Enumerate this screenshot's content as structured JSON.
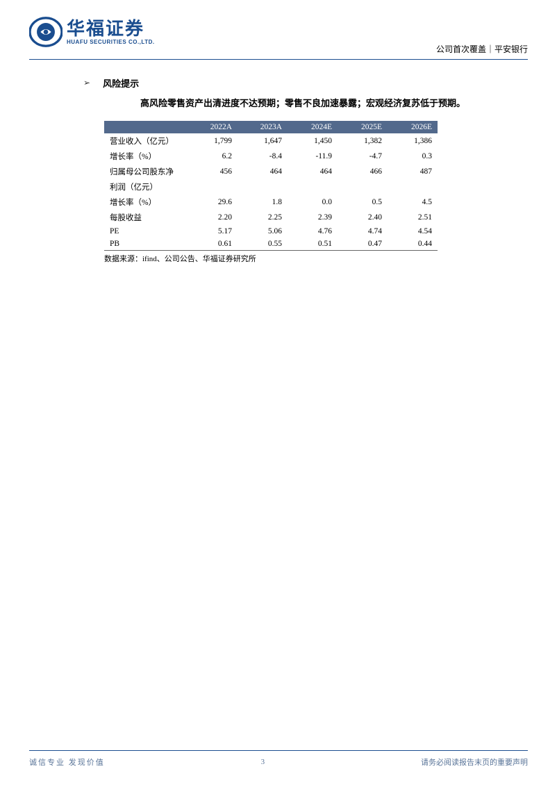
{
  "header": {
    "logo_chinese": "华福证券",
    "logo_english": "HUAFU SECURITIES CO.,LTD.",
    "right_text": "公司首次覆盖｜平安银行"
  },
  "section": {
    "title": "风险提示",
    "body": "高风险零售资产出清进度不达预期；零售不良加速暴露；宏观经济复苏低于预期。"
  },
  "table": {
    "header_bg": "#52698c",
    "header_fg": "#ffffff",
    "columns": [
      "",
      "2022A",
      "2023A",
      "2024E",
      "2025E",
      "2026E"
    ],
    "rows": [
      [
        "营业收入（亿元）",
        "1,799",
        "1,647",
        "1,450",
        "1,382",
        "1,386"
      ],
      [
        "增长率（%）",
        "6.2",
        "-8.4",
        "-11.9",
        "-4.7",
        "0.3"
      ],
      [
        "归属母公司股东净",
        "456",
        "464",
        "464",
        "466",
        "487"
      ],
      [
        "利润（亿元）",
        "",
        "",
        "",
        "",
        ""
      ],
      [
        "增长率（%）",
        "29.6",
        "1.8",
        "0.0",
        "0.5",
        "4.5"
      ],
      [
        "每股收益",
        "2.20",
        "2.25",
        "2.39",
        "2.40",
        "2.51"
      ],
      [
        "PE",
        "5.17",
        "5.06",
        "4.76",
        "4.74",
        "4.54"
      ],
      [
        "PB",
        "0.61",
        "0.55",
        "0.51",
        "0.47",
        "0.44"
      ]
    ],
    "source": "数据来源：ifind、公司公告、华福证券研究所"
  },
  "footer": {
    "left": "诚信专业   发现价值",
    "page_number": "3",
    "right": "请务必阅读报告末页的重要声明"
  },
  "colors": {
    "brand_blue": "#1a4d8f",
    "footer_text": "#5a7599"
  }
}
